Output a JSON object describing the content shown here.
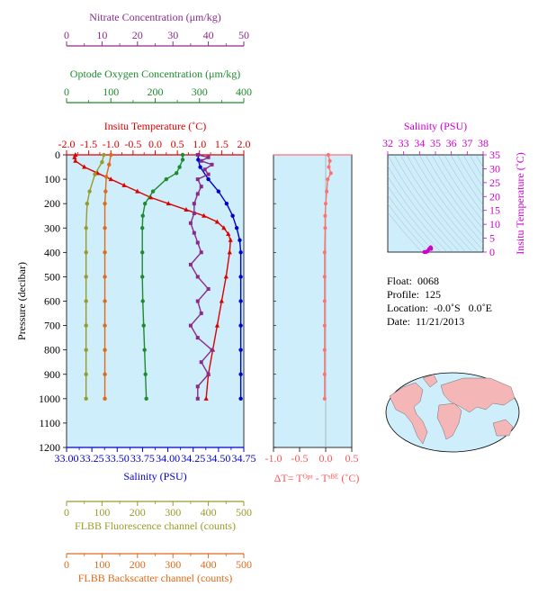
{
  "chart_data": [
    {
      "type": "line",
      "ylabel": "Pressure (decibar)",
      "yrange": [
        1200,
        0
      ],
      "yticks": [
        0,
        100,
        200,
        300,
        400,
        500,
        600,
        700,
        800,
        900,
        1000,
        1100,
        1200
      ],
      "axes": {
        "nitrate": {
          "label": "Nitrate Concentration (μm/kg)",
          "range": [
            0,
            50
          ],
          "ticks": [
            0,
            10,
            20,
            30,
            40,
            50
          ],
          "color": "#8b2a8b"
        },
        "oxygen": {
          "label": "Optode Oxygen Concentration (μm/kg)",
          "range": [
            0,
            400
          ],
          "ticks": [
            0,
            100,
            200,
            300,
            400
          ],
          "color": "#1f8a2e"
        },
        "temperature": {
          "label": "Insitu Temperature (˚C)",
          "range": [
            -2.0,
            2.0
          ],
          "ticks": [
            "-2.0",
            "-1.5",
            "-1.0",
            "-0.5",
            "0.0",
            "0.5",
            "1.0",
            "1.5",
            "2.0"
          ],
          "color": "#dd0000"
        },
        "salinity": {
          "label": "Salinity (PSU)",
          "range": [
            33.0,
            34.75
          ],
          "ticks": [
            "33.00",
            "33.25",
            "33.50",
            "33.75",
            "34.00",
            "34.25",
            "34.50",
            "34.75"
          ],
          "color": "#0000cc"
        },
        "fluorescence": {
          "label": "FLBB Fluorescence channel (counts)",
          "range": [
            0,
            500
          ],
          "ticks": [
            0,
            100,
            200,
            300,
            400,
            500
          ],
          "color": "#9a9a2a"
        },
        "backscatter": {
          "label": "FLBB Backscatter channel (counts)",
          "range": [
            0,
            500
          ],
          "ticks": [
            0,
            100,
            200,
            300,
            400,
            500
          ],
          "color": "#e06a1a"
        }
      },
      "series": [
        {
          "name": "Insitu Temperature",
          "axis": "temperature",
          "points": [
            [
              -1.8,
              0
            ],
            [
              -1.82,
              10
            ],
            [
              -1.8,
              25
            ],
            [
              -1.6,
              50
            ],
            [
              -1.3,
              75
            ],
            [
              -1.0,
              100
            ],
            [
              -0.7,
              125
            ],
            [
              -0.4,
              150
            ],
            [
              -0.1,
              175
            ],
            [
              0.3,
              200
            ],
            [
              0.7,
              225
            ],
            [
              1.1,
              250
            ],
            [
              1.4,
              275
            ],
            [
              1.55,
              300
            ],
            [
              1.65,
              325
            ],
            [
              1.7,
              350
            ],
            [
              1.68,
              400
            ],
            [
              1.6,
              500
            ],
            [
              1.5,
              600
            ],
            [
              1.4,
              700
            ],
            [
              1.3,
              800
            ],
            [
              1.2,
              900
            ],
            [
              1.15,
              1000
            ]
          ]
        },
        {
          "name": "Salinity",
          "axis": "salinity",
          "points": [
            [
              34.3,
              0
            ],
            [
              34.3,
              20
            ],
            [
              34.32,
              50
            ],
            [
              34.4,
              100
            ],
            [
              34.5,
              150
            ],
            [
              34.58,
              200
            ],
            [
              34.64,
              250
            ],
            [
              34.68,
              300
            ],
            [
              34.71,
              350
            ],
            [
              34.72,
              400
            ],
            [
              34.72,
              500
            ],
            [
              34.72,
              600
            ],
            [
              34.72,
              700
            ],
            [
              34.72,
              800
            ],
            [
              34.72,
              900
            ],
            [
              34.72,
              1000
            ]
          ]
        },
        {
          "name": "Optode Oxygen Concentration",
          "axis": "oxygen",
          "points": [
            [
              262,
              0
            ],
            [
              262,
              20
            ],
            [
              255,
              50
            ],
            [
              248,
              75
            ],
            [
              225,
              100
            ],
            [
              195,
              150
            ],
            [
              177,
              200
            ],
            [
              172,
              250
            ],
            [
              171,
              300
            ],
            [
              171,
              400
            ],
            [
              171,
              500
            ],
            [
              172,
              600
            ],
            [
              174,
              700
            ],
            [
              176,
              800
            ],
            [
              178,
              900
            ],
            [
              180,
              1000
            ]
          ]
        },
        {
          "name": "Nitrate Concentration",
          "axis": "nitrate",
          "points": [
            [
              37,
              0
            ],
            [
              40,
              10
            ],
            [
              38,
              25
            ],
            [
              41,
              40
            ],
            [
              39,
              60
            ],
            [
              40,
              80
            ],
            [
              37,
              100
            ],
            [
              38,
              130
            ],
            [
              37,
              160
            ],
            [
              36,
              200
            ],
            [
              36,
              240
            ],
            [
              35,
              280
            ],
            [
              36,
              320
            ],
            [
              37,
              360
            ],
            [
              38,
              400
            ],
            [
              35,
              450
            ],
            [
              37,
              500
            ],
            [
              40,
              550
            ],
            [
              37,
              600
            ],
            [
              38,
              650
            ],
            [
              35,
              700
            ],
            [
              37,
              750
            ],
            [
              41,
              800
            ],
            [
              38,
              850
            ],
            [
              40,
              900
            ],
            [
              37,
              950
            ],
            [
              37,
              1000
            ]
          ]
        },
        {
          "name": "FLBB Fluorescence channel",
          "axis": "fluorescence",
          "points": [
            [
              105,
              0
            ],
            [
              100,
              30
            ],
            [
              80,
              80
            ],
            [
              65,
              150
            ],
            [
              58,
              200
            ],
            [
              55,
              300
            ],
            [
              55,
              400
            ],
            [
              55,
              500
            ],
            [
              55,
              600
            ],
            [
              55,
              700
            ],
            [
              55,
              800
            ],
            [
              55,
              900
            ],
            [
              55,
              1000
            ]
          ]
        },
        {
          "name": "FLBB Backscatter channel",
          "axis": "backscatter",
          "points": [
            [
              125,
              0
            ],
            [
              120,
              40
            ],
            [
              112,
              90
            ],
            [
              110,
              150
            ],
            [
              108,
              200
            ],
            [
              108,
              300
            ],
            [
              108,
              400
            ],
            [
              108,
              500
            ],
            [
              108,
              600
            ],
            [
              108,
              700
            ],
            [
              108,
              800
            ],
            [
              108,
              900
            ],
            [
              108,
              1000
            ]
          ]
        }
      ]
    },
    {
      "type": "line",
      "xlabel": "ΔT= Tᴼᵖᵗ - Tˢᴮᴱ (˚C)",
      "xrange": [
        -1.0,
        0.5
      ],
      "xticks": [
        "-1.0",
        "-0.5",
        "0.0",
        "0.5"
      ],
      "yrange": [
        1200,
        0
      ],
      "series": [
        {
          "name": "Temperature difference",
          "points": [
            [
              0.05,
              0
            ],
            [
              0.08,
              25
            ],
            [
              0.06,
              50
            ],
            [
              0.1,
              75
            ],
            [
              0.04,
              100
            ],
            [
              0.02,
              150
            ],
            [
              0.0,
              200
            ],
            [
              -0.01,
              250
            ],
            [
              -0.01,
              300
            ],
            [
              -0.02,
              400
            ],
            [
              -0.02,
              500
            ],
            [
              -0.02,
              600
            ],
            [
              -0.02,
              700
            ],
            [
              -0.02,
              800
            ],
            [
              -0.02,
              900
            ],
            [
              -0.02,
              1000
            ]
          ]
        }
      ]
    },
    {
      "type": "scatter",
      "xlabel": "Salinity (PSU)",
      "ylabel": "Insitu Temperature (˚C)",
      "xrange": [
        32,
        38
      ],
      "xticks": [
        32,
        33,
        34,
        35,
        36,
        37,
        38
      ],
      "yrange": [
        0,
        35
      ],
      "yticks": [
        0,
        5,
        10,
        15,
        20,
        25,
        30,
        35
      ],
      "points": [
        [
          34.3,
          -1.8
        ],
        [
          34.4,
          -1.0
        ],
        [
          34.5,
          0.3
        ],
        [
          34.6,
          1.1
        ],
        [
          34.7,
          1.7
        ],
        [
          34.72,
          1.4
        ],
        [
          34.72,
          1.15
        ]
      ]
    }
  ],
  "info": {
    "float": "Float:  0068",
    "profile": "Profile:  125",
    "location": "Location:  -0.0˚S   0.0˚E",
    "date": "Date:  11/21/2013"
  },
  "colors": {
    "plot_bg": "#cdeefa",
    "land": "#f4b6b6",
    "ocean": "#cdeefa",
    "ts_marker": "#d000d0"
  }
}
